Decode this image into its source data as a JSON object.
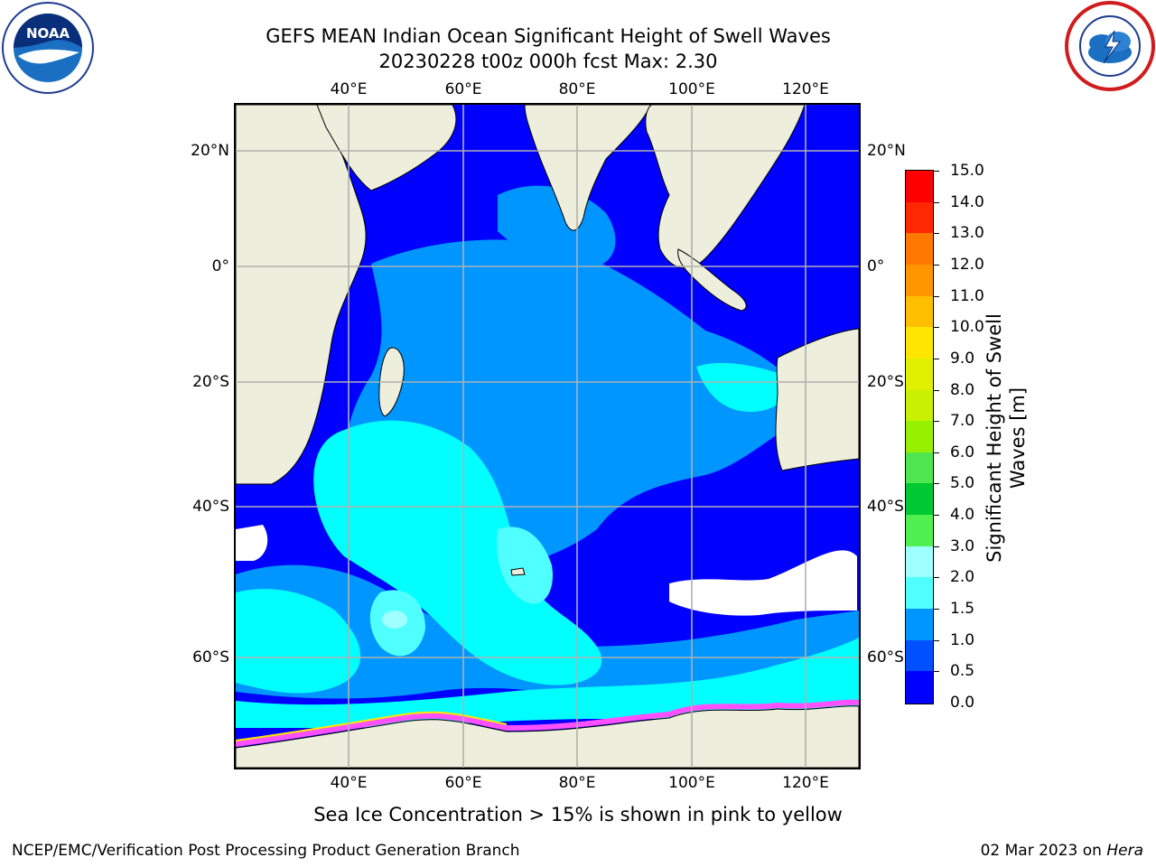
{
  "title": {
    "line1": "GEFS MEAN Indian Ocean Significant Height of Swell Waves",
    "line2": "20230228 t00z 000h fcst   Max: 2.30"
  },
  "map": {
    "lon_ticks": [
      "40°E",
      "60°E",
      "80°E",
      "100°E",
      "120°E"
    ],
    "lat_ticks": [
      "20°N",
      "0°",
      "20°S",
      "40°S",
      "60°S"
    ],
    "colors": {
      "land": "#eeeedd",
      "grid": "#b0b0b0",
      "coast": "#000000",
      "missing": "#ffffff"
    }
  },
  "colorbar": {
    "title_line1": "Significant Height of Swell",
    "title_line2": "Waves [m]",
    "labels": [
      "15.0",
      "14.0",
      "13.0",
      "12.0",
      "11.0",
      "10.0",
      "9.0",
      "8.0",
      "7.0",
      "6.0",
      "5.0",
      "4.0",
      "3.0",
      "2.0",
      "1.5",
      "1.0",
      "0.5",
      "0.0"
    ],
    "colors_top_to_bottom": [
      "#ff0000",
      "#ff2800",
      "#ff5000",
      "#ff7800",
      "#ff9600",
      "#ffbe00",
      "#ffe600",
      "#f0f000",
      "#e0f000",
      "#c8f000",
      "#96f000",
      "#50e650",
      "#00dc00",
      "#00c832",
      "#50f050",
      "#a0ffff",
      "#50ffff",
      "#00ffff",
      "#0096ff",
      "#0050ff",
      "#0000ff"
    ]
  },
  "footnote": "Sea Ice Concentration > 15% is shown in pink to yellow",
  "credit_left": "NCEP/EMC/Verification Post Processing Product Generation Branch",
  "credit_right_date": "02 Mar 2023 on ",
  "credit_right_machine": "Hera",
  "logos": {
    "left": "noaa-logo",
    "right": "nws-logo",
    "left_text": "NOAA"
  }
}
